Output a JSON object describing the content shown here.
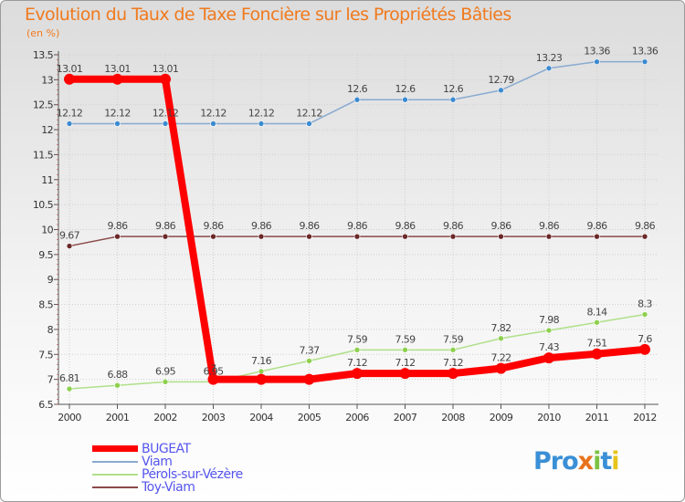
{
  "chart_data": {
    "type": "line",
    "title": "Evolution du Taux de Taxe Foncière sur les Propriétés Bâties",
    "ylabel": "(en %)",
    "xlabel": "",
    "x": [
      "2000",
      "2001",
      "2002",
      "2003",
      "2004",
      "2005",
      "2006",
      "2007",
      "2008",
      "2009",
      "2010",
      "2011",
      "2012"
    ],
    "ylim": [
      6.5,
      13.5
    ],
    "yticks": [
      "6.5",
      "7",
      "7.5",
      "8",
      "8.5",
      "9",
      "9.5",
      "10",
      "10.5",
      "11",
      "11.5",
      "12",
      "12.5",
      "13",
      "13.5"
    ],
    "series": [
      {
        "name": "BUGEAT",
        "color": "#ff0000",
        "values": [
          13.01,
          13.01,
          13.01,
          7,
          7,
          7,
          7.12,
          7.12,
          7.12,
          7.22,
          7.43,
          7.51,
          7.6
        ],
        "labels": [
          "13.01",
          "13.01",
          "13.01",
          "7",
          "7",
          "7",
          "7.12",
          "7.12",
          "7.12",
          "7.22",
          "7.43",
          "7.51",
          "7.6"
        ],
        "show_labels": [
          true,
          true,
          true,
          true,
          false,
          false,
          true,
          true,
          true,
          true,
          true,
          true,
          true
        ]
      },
      {
        "name": "Viam",
        "color": "#88aad0",
        "marker": "#3b8ad0",
        "values": [
          12.12,
          12.12,
          12.12,
          12.12,
          12.12,
          12.12,
          12.6,
          12.6,
          12.6,
          12.79,
          13.23,
          13.36,
          13.36
        ],
        "labels": [
          "12.12",
          "12.12",
          "12.12",
          "12.12",
          "12.12",
          "12.12",
          "12.6",
          "12.6",
          "12.6",
          "12.79",
          "13.23",
          "13.36",
          "13.36"
        ]
      },
      {
        "name": "Pérols-sur-Vézère",
        "color": "#b0e08a",
        "marker": "#8ed04e",
        "values": [
          6.81,
          6.88,
          6.95,
          6.95,
          7.16,
          7.37,
          7.59,
          7.59,
          7.59,
          7.82,
          7.98,
          8.14,
          8.3
        ],
        "labels": [
          "6.81",
          "6.88",
          "6.95",
          "6.95",
          "7.16",
          "7.37",
          "7.59",
          "7.59",
          "7.59",
          "7.82",
          "7.98",
          "8.14",
          "8.3"
        ]
      },
      {
        "name": "Toy-Viam",
        "color": "#8a4a4a",
        "marker": "#6a2828",
        "values": [
          9.67,
          9.86,
          9.86,
          9.86,
          9.86,
          9.86,
          9.86,
          9.86,
          9.86,
          9.86,
          9.86,
          9.86,
          9.86
        ],
        "labels": [
          "9.67",
          "9.86",
          "9.86",
          "9.86",
          "9.86",
          "9.86",
          "9.86",
          "9.86",
          "9.86",
          "9.86",
          "9.86",
          "9.86",
          "9.86"
        ]
      }
    ]
  },
  "brand": {
    "p1": "Pro",
    "p2": "x",
    "p3": "i",
    "p4": "t",
    "p5": "i"
  }
}
